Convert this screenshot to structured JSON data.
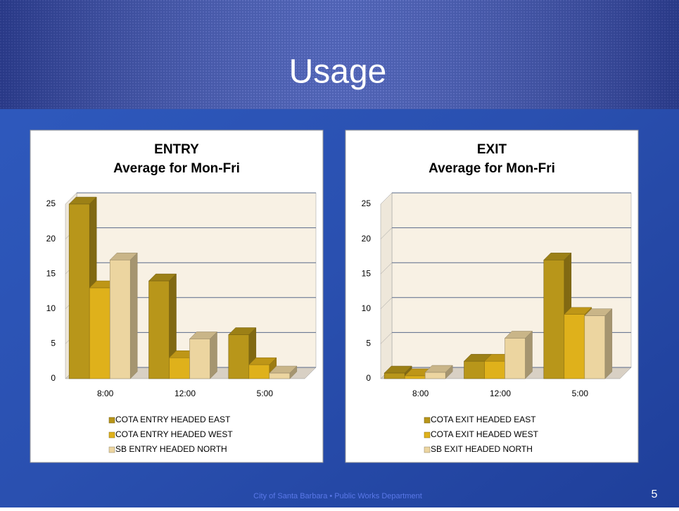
{
  "slide": {
    "title": "Usage",
    "footer": "City of Santa Barbara • Public Works Department",
    "page_number": 5
  },
  "chart_data": [
    {
      "type": "bar",
      "title": "ENTRY",
      "subtitle": "Average for Mon-Fri",
      "categories": [
        "8:00",
        "12:00",
        "5:00"
      ],
      "series": [
        {
          "name": "COTA ENTRY HEADED EAST",
          "color": "#b8961a",
          "values": [
            25,
            14,
            6.3
          ]
        },
        {
          "name": "COTA ENTRY HEADED WEST",
          "color": "#dfb11b",
          "values": [
            13,
            3,
            2
          ]
        },
        {
          "name": "SB ENTRY HEADED NORTH",
          "color": "#ecd5a0",
          "values": [
            17,
            5.7,
            0.8
          ]
        }
      ],
      "ylim": [
        0,
        25
      ],
      "yticks": [
        0,
        5,
        10,
        15,
        20,
        25
      ],
      "grid": true
    },
    {
      "type": "bar",
      "title": "EXIT",
      "subtitle": "Average for Mon-Fri",
      "categories": [
        "8:00",
        "12:00",
        "5:00"
      ],
      "series": [
        {
          "name": "COTA EXIT HEADED EAST",
          "color": "#b8961a",
          "values": [
            0.8,
            2.5,
            17
          ]
        },
        {
          "name": "COTA EXIT HEADED WEST",
          "color": "#dfb11b",
          "values": [
            0.4,
            2.5,
            9.2
          ]
        },
        {
          "name": "SB EXIT HEADED NORTH",
          "color": "#ecd5a0",
          "values": [
            0.9,
            5.8,
            9
          ]
        }
      ],
      "ylim": [
        0,
        25
      ],
      "yticks": [
        0,
        5,
        10,
        15,
        20,
        25
      ],
      "grid": true
    }
  ]
}
